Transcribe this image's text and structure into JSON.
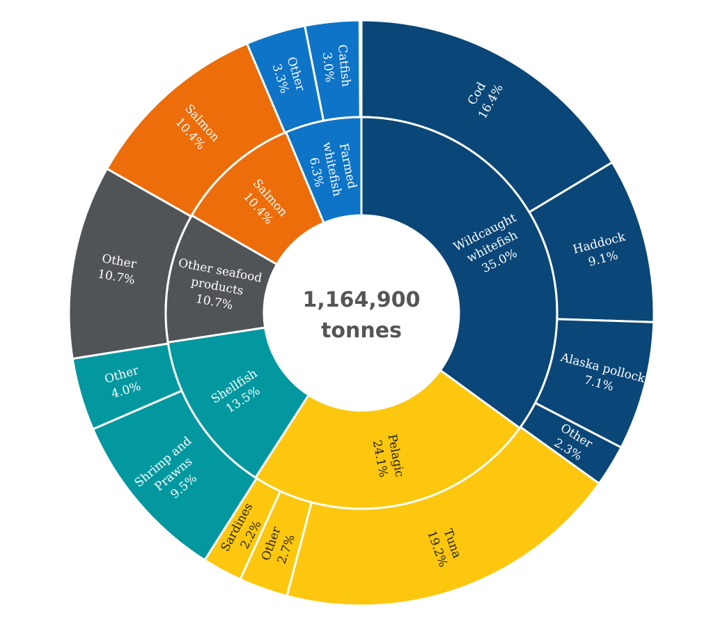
{
  "center": {
    "value_label": "1,164,900",
    "unit_label": "tonnes"
  },
  "chart_data": {
    "type": "sunburst",
    "total_tonnes": 1164900,
    "title": "",
    "inner_ring": [
      {
        "name": "Wildcaught whitefish",
        "pct": 35.0,
        "label": "35.0%",
        "color": "#0a4677",
        "text_color": "#ffffff"
      },
      {
        "name": "Pelagic",
        "pct": 24.1,
        "label": "24.1%",
        "color": "#fcc70e",
        "text_color": "#222222"
      },
      {
        "name": "Shellfish",
        "pct": 13.5,
        "label": "13.5%",
        "color": "#0398a0",
        "text_color": "#ffffff"
      },
      {
        "name": "Other seafood products",
        "pct": 10.7,
        "label": "10.7%",
        "color": "#515457",
        "text_color": "#ffffff"
      },
      {
        "name": "Salmon",
        "pct": 10.4,
        "label": "10.4%",
        "color": "#ec6d0a",
        "text_color": "#ffffff"
      },
      {
        "name": "Farmed whitefish",
        "pct": 6.3,
        "label": "6.3%",
        "color": "#0e74c7",
        "text_color": "#ffffff"
      }
    ],
    "outer_ring": [
      {
        "name": "Cod",
        "parent": "Wildcaught whitefish",
        "pct": 16.4,
        "label": "16.4%"
      },
      {
        "name": "Haddock",
        "parent": "Wildcaught whitefish",
        "pct": 9.1,
        "label": "9.1%"
      },
      {
        "name": "Alaska pollock",
        "parent": "Wildcaught whitefish",
        "pct": 7.1,
        "label": "7.1%"
      },
      {
        "name": "Other",
        "parent": "Wildcaught whitefish",
        "pct": 2.3,
        "label": "2.3%"
      },
      {
        "name": "Tuna",
        "parent": "Pelagic",
        "pct": 19.2,
        "label": "19.2%"
      },
      {
        "name": "Other",
        "parent": "Pelagic",
        "pct": 2.7,
        "label": "2.7%"
      },
      {
        "name": "Sardines",
        "parent": "Pelagic",
        "pct": 2.2,
        "label": "2.2%"
      },
      {
        "name": "Shrimp and Prawns",
        "parent": "Shellfish",
        "pct": 9.5,
        "label": "9.5%"
      },
      {
        "name": "Other",
        "parent": "Shellfish",
        "pct": 4.0,
        "label": "4.0%"
      },
      {
        "name": "Other",
        "parent": "Other seafood products",
        "pct": 10.7,
        "label": "10.7%"
      },
      {
        "name": "Salmon",
        "parent": "Salmon",
        "pct": 10.4,
        "label": "10.4%"
      },
      {
        "name": "Other",
        "parent": "Farmed whitefish",
        "pct": 3.3,
        "label": "3.3%"
      },
      {
        "name": "Catfish",
        "parent": "Farmed whitefish",
        "pct": 3.0,
        "label": "3.0%"
      }
    ]
  }
}
